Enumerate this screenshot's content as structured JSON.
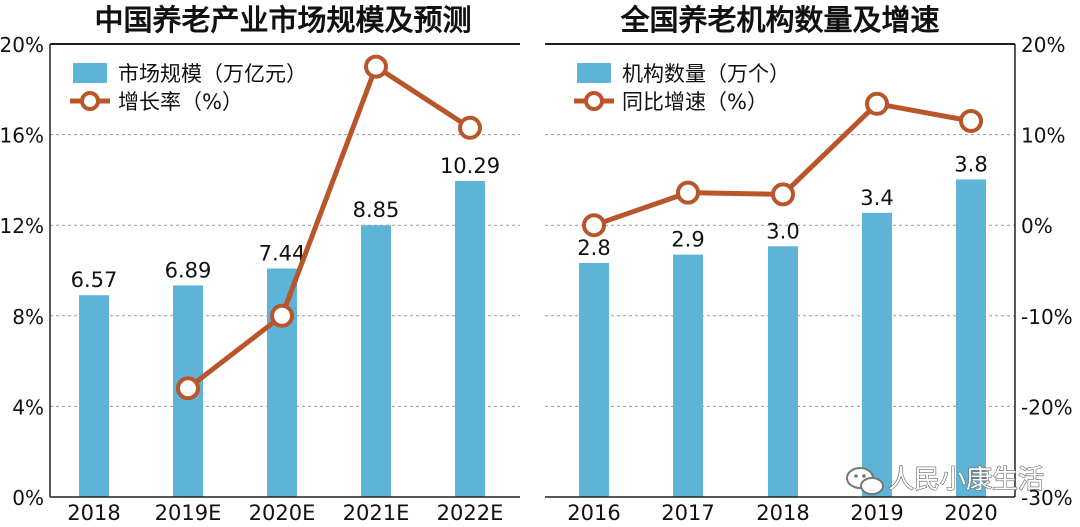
{
  "watermark": {
    "text": "人民小康生活"
  },
  "chart_data": [
    {
      "type": "bar+line",
      "title": "中国养老产业市场规模及预测",
      "categories": [
        "2018",
        "2019E",
        "2020E",
        "2021E",
        "2022E"
      ],
      "series": [
        {
          "name": "市场规模（万亿元）",
          "type": "bar",
          "values": [
            6.57,
            6.89,
            7.44,
            8.85,
            10.29
          ],
          "axis": "left"
        },
        {
          "name": "增长率（%）",
          "type": "line",
          "values": [
            null,
            4.8,
            8.0,
            19.0,
            16.3
          ],
          "axis": "left"
        }
      ],
      "y_left": {
        "ticks": [
          "0%",
          "4%",
          "8%",
          "12%",
          "16%",
          "20%"
        ],
        "range": [
          0,
          20
        ]
      },
      "grid": "dashed-horizontal",
      "legend": "top-left",
      "colors": {
        "bar": "#5eb4d6",
        "line": "#b8552a"
      }
    },
    {
      "type": "bar+line",
      "title": "全国养老机构数量及增速",
      "categories": [
        "2016",
        "2017",
        "2018",
        "2019",
        "2020"
      ],
      "series": [
        {
          "name": "机构数量（万个）",
          "type": "bar",
          "values": [
            2.8,
            2.9,
            3.0,
            3.4,
            3.8
          ],
          "axis": "right"
        },
        {
          "name": "同比增速（%）",
          "type": "line",
          "values": [
            0.0,
            3.6,
            3.4,
            13.4,
            11.5
          ],
          "axis": "right"
        }
      ],
      "y_right": {
        "ticks": [
          "20%",
          "10%",
          "0%",
          "-10%",
          "-20%",
          "-30%"
        ],
        "range": [
          -30,
          20
        ]
      },
      "grid": "dashed-horizontal",
      "legend": "top-left",
      "colors": {
        "bar": "#5eb4d6",
        "line": "#b8552a"
      }
    }
  ]
}
